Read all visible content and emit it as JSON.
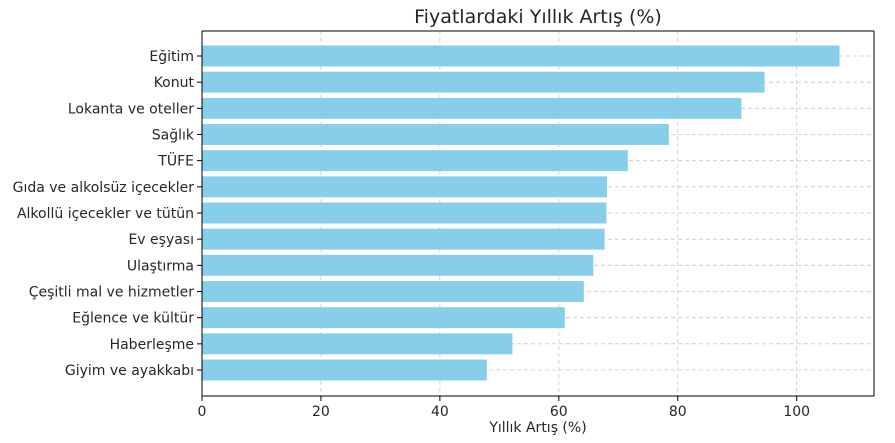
{
  "chart_data": {
    "type": "bar",
    "orientation": "horizontal",
    "title": "Fiyatlardaki Yıllık Artış (%)",
    "xlabel": "Yıllık Artış (%)",
    "ylabel": "",
    "categories": [
      "Eğitim",
      "Konut",
      "Lokanta ve oteller",
      "Sağlık",
      "TÜFE",
      "Gıda ve alkolsüz içecekler",
      "Alkollü içecekler ve tütün",
      "Ev eşyası",
      "Ulaştırma",
      "Çeşitli mal ve hizmetler",
      "Eğlence ve kültür",
      "Haberleşme",
      "Giyim ve ayakkabı"
    ],
    "values": [
      107.2,
      94.6,
      90.7,
      78.5,
      71.6,
      68.1,
      68.0,
      67.7,
      65.8,
      64.2,
      61.0,
      52.2,
      47.9
    ],
    "xlim": [
      0,
      113
    ],
    "xticks": [
      "0",
      "20",
      "40",
      "60",
      "80",
      "100"
    ],
    "xtick_values": [
      0,
      20,
      40,
      60,
      80,
      100
    ],
    "bar_color": "#87ceeb",
    "grid": true,
    "legend": "none"
  }
}
